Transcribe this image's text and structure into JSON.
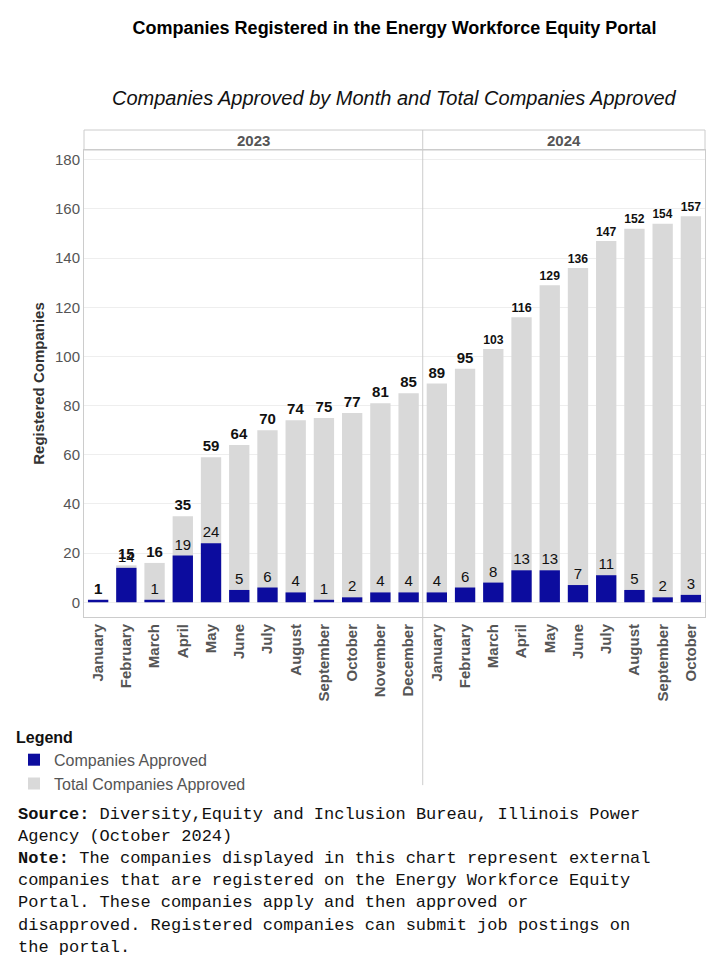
{
  "chart_data": {
    "type": "bar",
    "title": "Companies Registered in the Energy Workforce Equity Portal",
    "subtitle": "Companies Approved by Month and Total Companies Approved",
    "y_label": "Registered Companies",
    "categories": [
      "January",
      "February",
      "March",
      "April",
      "May",
      "June",
      "July",
      "August",
      "September",
      "October",
      "November",
      "December",
      "January",
      "February",
      "March",
      "April",
      "May",
      "June",
      "July",
      "August",
      "September",
      "October"
    ],
    "groups": [
      "2023",
      "2023",
      "2023",
      "2023",
      "2023",
      "2023",
      "2023",
      "2023",
      "2023",
      "2023",
      "2023",
      "2023",
      "2024",
      "2024",
      "2024",
      "2024",
      "2024",
      "2024",
      "2024",
      "2024",
      "2024",
      "2024"
    ],
    "series": [
      {
        "name": "Total Companies Approved",
        "color": "#d9d9d9",
        "values": [
          1,
          15,
          16,
          35,
          59,
          64,
          70,
          74,
          75,
          77,
          81,
          85,
          89,
          95,
          103,
          116,
          129,
          136,
          147,
          152,
          154,
          157
        ]
      },
      {
        "name": "Companies Approved",
        "color": "#0c0c9e",
        "values": [
          1,
          14,
          1,
          19,
          24,
          5,
          6,
          4,
          1,
          2,
          4,
          4,
          4,
          6,
          8,
          13,
          13,
          7,
          11,
          5,
          2,
          3
        ]
      }
    ],
    "stacked": false,
    "data_labels": true,
    "ylim": [
      -6,
      184
    ],
    "yticks": [
      0,
      20,
      40,
      60,
      80,
      100,
      120,
      140,
      160,
      180
    ],
    "grid": true,
    "legend": "bottom left",
    "legend_title": "Legend",
    "source_label": "Source:",
    "source": "Diversity,Equity and Inclusion Bureau, Illinois Power Agency (October 2024)",
    "note_label": "Note:",
    "note": "The companies displayed in this chart represent external companies that are registered on the Energy Workforce Equity Portal. These companies apply and then approved or disapproved. Registered companies can submit job postings on the portal."
  }
}
